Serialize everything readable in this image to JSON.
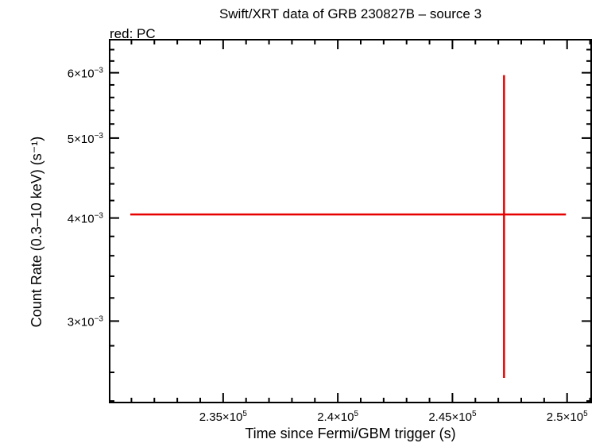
{
  "chart_data": {
    "type": "scatter",
    "title": "Swift/XRT data of GRB 230827B – source 3",
    "subtitle": "red: PC",
    "xlabel": "Time since Fermi/GBM trigger (s)",
    "ylabel": "Count Rate (0.3–10 keV) (s⁻¹)",
    "x_scale": "linear",
    "y_scale": "log",
    "xlim": [
      230050,
      251050
    ],
    "ylim": [
      0.00239,
      0.00658
    ],
    "x_ticks": [
      {
        "value": 235000,
        "mantissa": "2.35",
        "exp": "5"
      },
      {
        "value": 240000,
        "mantissa": "2.4",
        "exp": "5"
      },
      {
        "value": 245000,
        "mantissa": "2.45",
        "exp": "5"
      },
      {
        "value": 250000,
        "mantissa": "2.5",
        "exp": "5"
      }
    ],
    "y_ticks": [
      {
        "value": 0.003,
        "mantissa": "3",
        "exp": "−3"
      },
      {
        "value": 0.004,
        "mantissa": "4",
        "exp": "−3"
      },
      {
        "value": 0.005,
        "mantissa": "5",
        "exp": "−3"
      },
      {
        "value": 0.006,
        "mantissa": "6",
        "exp": "−3"
      }
    ],
    "series": [
      {
        "color": "#e60000",
        "points": [
          {
            "x": 247250,
            "x_lo": 230950,
            "x_hi": 249950,
            "y": 0.00404,
            "y_lo": 0.00256,
            "y_hi": 0.00596
          }
        ]
      }
    ]
  }
}
